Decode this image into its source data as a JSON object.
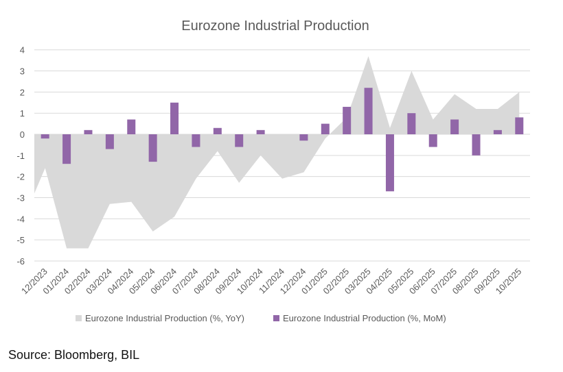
{
  "chart_data": {
    "type": "bar+area",
    "title": "Eurozone Industrial Production",
    "xlabel": "",
    "ylabel": "",
    "ylim": [
      -6,
      4
    ],
    "yticks": [
      4,
      3,
      2,
      1,
      0,
      -1,
      -2,
      -3,
      -4,
      -5,
      -6
    ],
    "grid": true,
    "legend_position": "bottom",
    "categories": [
      "12/2023",
      "01/2024",
      "02/2024",
      "03/2024",
      "04/2024",
      "05/2024",
      "06/2024",
      "07/2024",
      "08/2024",
      "09/2024",
      "10/2024",
      "11/2024",
      "12/2024",
      "01/2025",
      "02/2025",
      "03/2025",
      "04/2025",
      "05/2025",
      "06/2025",
      "07/2025",
      "08/2025",
      "09/2025",
      "10/2025"
    ],
    "series": [
      {
        "name": "Eurozone Industrial Production (%, YoY)",
        "type": "area",
        "color": "#d9d9d9",
        "leading_edge_value": -2.8,
        "values": [
          -1.6,
          -5.4,
          -5.4,
          -3.3,
          -3.2,
          -4.6,
          -3.9,
          -2.1,
          -0.8,
          -2.3,
          -1.0,
          -2.1,
          -1.8,
          -0.2,
          0.8,
          3.7,
          0.3,
          3.0,
          0.7,
          1.9,
          1.2,
          1.2,
          2.0
        ]
      },
      {
        "name": "Eurozone Industrial Production (%, MoM)",
        "type": "bar",
        "color": "#9166a8",
        "values": [
          -0.2,
          -1.4,
          0.2,
          -0.7,
          0.7,
          -1.3,
          1.5,
          -0.6,
          0.3,
          -0.6,
          0.2,
          0.0,
          -0.3,
          0.5,
          1.3,
          2.2,
          -2.7,
          1.0,
          -0.6,
          0.7,
          -1.0,
          0.2,
          0.8
        ]
      }
    ]
  },
  "source": "Source: Bloomberg, BIL"
}
